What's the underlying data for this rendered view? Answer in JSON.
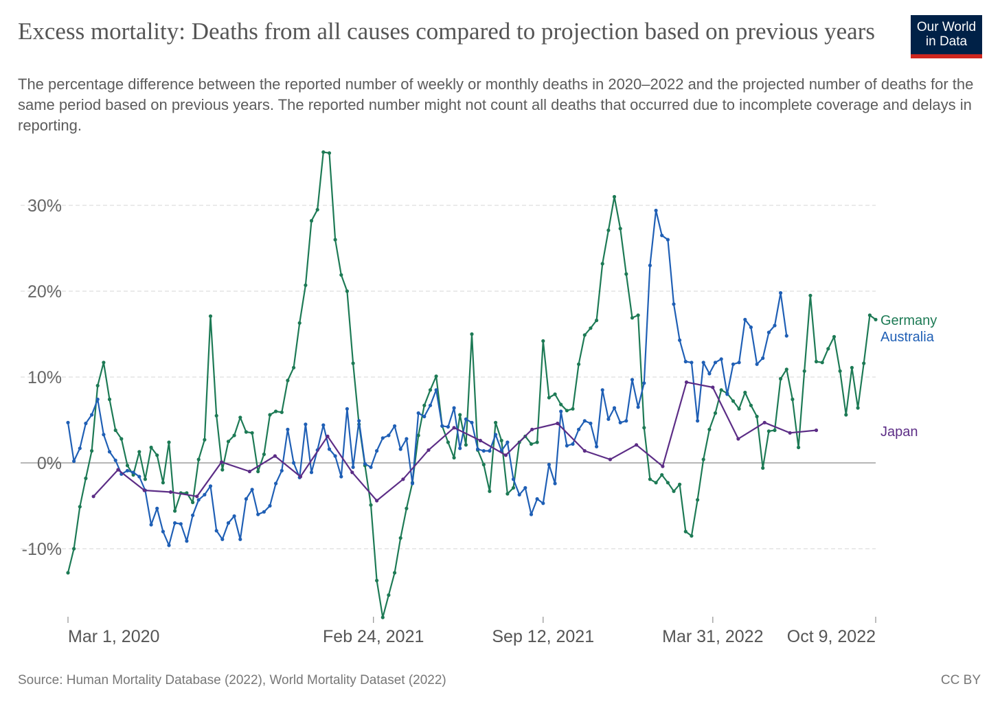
{
  "header": {
    "title": "Excess mortality: Deaths from all causes compared to projection based on previous years",
    "subtitle": "The percentage difference between the reported number of weekly or monthly deaths in 2020–2022 and the projected number of deaths for the same period based on previous years. The reported number might not count all deaths that occurred due to incomplete coverage and delays in reporting.",
    "logo": {
      "line1": "Our World",
      "line2": "in Data"
    }
  },
  "footer": {
    "source": "Source: Human Mortality Database (2022), World Mortality Dataset (2022)",
    "license": "CC BY"
  },
  "chart_data": {
    "type": "line",
    "title": "Excess mortality: Deaths from all causes compared to projection based on previous years",
    "xlabel": "",
    "ylabel": "",
    "x_unit": "days since Mar 1, 2020",
    "xlim": [
      0,
      952
    ],
    "ylim": [
      -18,
      36
    ],
    "grid": true,
    "legend": "right (inline labels at line ends)",
    "y_ticks": [
      {
        "value": -10,
        "label": "-10%"
      },
      {
        "value": 0,
        "label": "0%"
      },
      {
        "value": 10,
        "label": "10%"
      },
      {
        "value": 20,
        "label": "20%"
      },
      {
        "value": 30,
        "label": "30%"
      }
    ],
    "x_ticks": [
      {
        "value": 0,
        "label": "Mar 1, 2020"
      },
      {
        "value": 360,
        "label": "Feb 24, 2021"
      },
      {
        "value": 560,
        "label": "Sep 12, 2021"
      },
      {
        "value": 760,
        "label": "Mar 31, 2022"
      },
      {
        "value": 952,
        "label": "Oct 9, 2022"
      }
    ],
    "series": [
      {
        "name": "Germany",
        "color": "#1d7a55",
        "x_start": 0,
        "x_step": 7,
        "values": [
          -12.8,
          -10,
          -5.1,
          -1.8,
          1.4,
          9,
          11.7,
          7.4,
          3.8,
          2.8,
          -0.3,
          -1.4,
          1.3,
          -1.9,
          1.8,
          0.9,
          -2.3,
          2.4,
          -5.6,
          -3.5,
          -3.5,
          -4.6,
          0.4,
          2.7,
          17.1,
          5.5,
          -0.8,
          2.5,
          3.2,
          5.3,
          3.6,
          3.5,
          -1,
          1,
          5.6,
          6,
          5.9,
          9.6,
          11.1,
          16.3,
          20.7,
          28.2,
          29.5,
          36.2,
          36.1,
          26,
          21.9,
          20,
          11.6,
          4.5,
          -0.3,
          -4.9,
          -13.7,
          -18,
          -15.4,
          -12.8,
          -8.75,
          -5.3,
          -2.3,
          3.2,
          6.7,
          8.5,
          10.1,
          4.3,
          2.4,
          0.6,
          5.6,
          2.1,
          15,
          1.5,
          -0.2,
          -3.3,
          4.7,
          2.6,
          -3.6,
          -2.9,
          2.4,
          3.1,
          2.2,
          2.4,
          14.2,
          7.6,
          8,
          6.8,
          6.1,
          6.3,
          11.5,
          14.9,
          15.7,
          16.6,
          23.2,
          27.1,
          31,
          27.3,
          22,
          16.9,
          17.2,
          4.1,
          -1.9,
          -2.3,
          -1.4,
          -2.3,
          -3.3,
          -2.5,
          -8,
          -8.5,
          -4.3,
          0.4,
          3.9,
          5.8,
          8.5,
          8.1,
          7.2,
          6.3,
          8.2,
          6.7,
          5.4,
          -0.6,
          3.7,
          3.8,
          9.8,
          10.9,
          7.4,
          1.8,
          10.7,
          19.5,
          11.8,
          11.7,
          13.3,
          14.7,
          10.7,
          5.6,
          11.1,
          6.4,
          11.6,
          17.2,
          16.7
        ]
      },
      {
        "name": "Australia",
        "color": "#1f5fb5",
        "x_start": 0,
        "x_step": 7,
        "values": [
          4.7,
          0.2,
          1.7,
          4.6,
          5.6,
          7.4,
          3.3,
          1.3,
          0.3,
          -1.3,
          -0.9,
          -1.1,
          -1.6,
          -3.2,
          -7.2,
          -5.3,
          -8,
          -9.6,
          -7,
          -7.1,
          -9.1,
          -6.1,
          -4.3,
          -3.7,
          -2.7,
          -7.9,
          -8.9,
          -7,
          -6.2,
          -8.9,
          -4.2,
          -3.1,
          -6,
          -5.7,
          -5,
          -2.4,
          -0.9,
          3.9,
          0,
          -1.7,
          4.5,
          -1.1,
          1.5,
          4.4,
          1.6,
          0.8,
          -1.6,
          6.3,
          -0.5,
          4.9,
          -0.1,
          -0.5,
          1.4,
          2.9,
          3.2,
          4.3,
          1.6,
          2.8,
          -2.4,
          5.8,
          5.4,
          6.7,
          8.5,
          4.3,
          4.2,
          6.4,
          1.7,
          5.1,
          4.7,
          1.6,
          1.4,
          1.4,
          3.3,
          1.4,
          2.4,
          -1.9,
          -3.7,
          -2.9,
          -6,
          -4.2,
          -4.7,
          -0.2,
          -2.4,
          6,
          2,
          2.2,
          3.9,
          4.9,
          4.6,
          1.9,
          8.5,
          5.1,
          6.4,
          4.7,
          4.9,
          9.7,
          6.5,
          9.3,
          23,
          29.4,
          26.5,
          26,
          18.5,
          14.3,
          11.8,
          11.7,
          4.9,
          11.7,
          10.4,
          11.7,
          12.1,
          8,
          11.5,
          11.7,
          16.7,
          15.8,
          11.5,
          12.2,
          15.2,
          16,
          19.8,
          14.8
        ]
      },
      {
        "name": "Japan",
        "color": "#5c2d86",
        "points": [
          [
            30,
            -3.9
          ],
          [
            59,
            -0.8
          ],
          [
            90,
            -3.2
          ],
          [
            121,
            -3.4
          ],
          [
            152,
            -3.9
          ],
          [
            181,
            0.1
          ],
          [
            214,
            -1
          ],
          [
            244,
            0.8
          ],
          [
            274,
            -1.6
          ],
          [
            306,
            3.1
          ],
          [
            335,
            -1.1
          ],
          [
            364,
            -4.4
          ],
          [
            395,
            -1.9
          ],
          [
            425,
            1.5
          ],
          [
            455,
            4.1
          ],
          [
            486,
            2.6
          ],
          [
            516,
            0.9
          ],
          [
            547,
            3.9
          ],
          [
            577,
            4.6
          ],
          [
            609,
            1.4
          ],
          [
            639,
            0.4
          ],
          [
            670,
            2.1
          ],
          [
            701,
            -0.4
          ],
          [
            729,
            9.4
          ],
          [
            760,
            8.8
          ],
          [
            790,
            2.8
          ],
          [
            821,
            4.7
          ],
          [
            851,
            3.5
          ],
          [
            882,
            3.8
          ]
        ]
      }
    ]
  }
}
